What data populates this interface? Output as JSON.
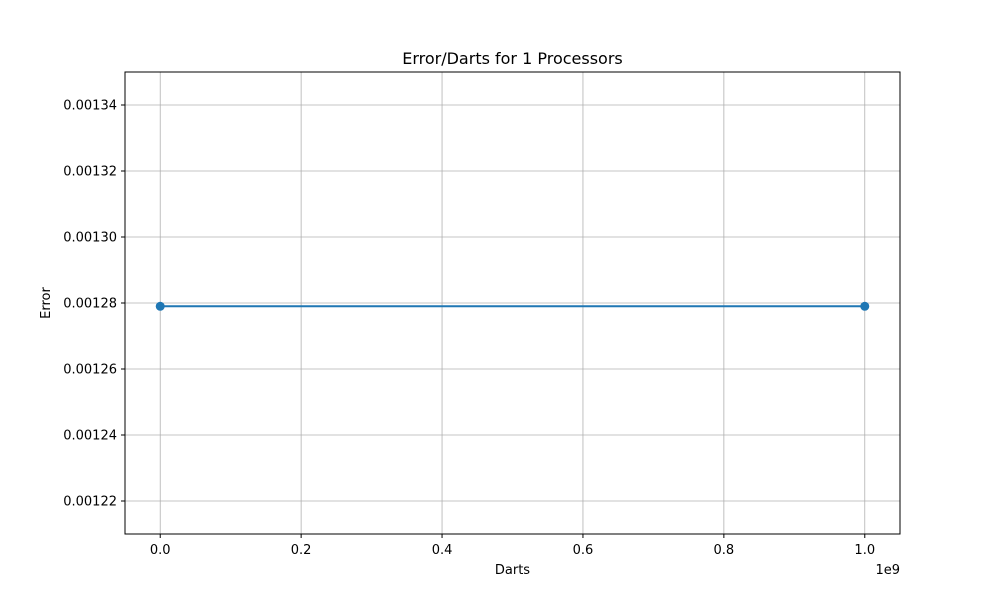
{
  "chart_data": {
    "type": "line",
    "title": "Error/Darts for 1 Processors",
    "xlabel": "Darts",
    "ylabel": "Error",
    "x_offset_label": "1e9",
    "xlim": [
      -50000000,
      1050000000
    ],
    "ylim": [
      0.00121,
      0.00135
    ],
    "x_ticks": [
      0,
      200000000,
      400000000,
      600000000,
      800000000,
      1000000000
    ],
    "x_tick_labels": [
      "0.0",
      "0.2",
      "0.4",
      "0.6",
      "0.8",
      "1.0"
    ],
    "y_ticks": [
      0.00122,
      0.00124,
      0.00126,
      0.00128,
      0.0013,
      0.00132,
      0.00134
    ],
    "y_tick_labels": [
      "0.00122",
      "0.00124",
      "0.00126",
      "0.00128",
      "0.00130",
      "0.00132",
      "0.00134"
    ],
    "grid": true,
    "series": [
      {
        "color": "#1f77b4",
        "marker": "circle",
        "x": [
          1000,
          1000000000
        ],
        "y": [
          0.001279,
          0.001279
        ]
      }
    ]
  }
}
